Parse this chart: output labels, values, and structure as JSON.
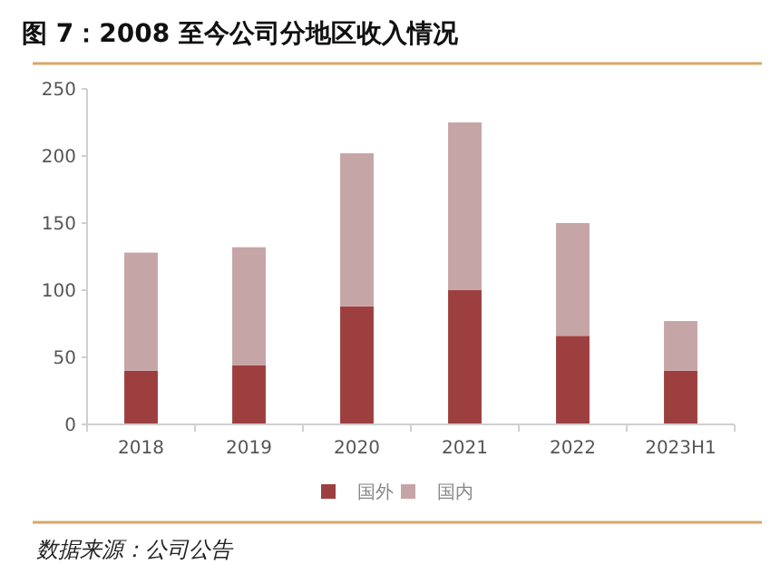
{
  "chart_data": {
    "type": "bar",
    "title": "图 7：2008 至今公司分地区收入情况",
    "annotations": [
      "数据来源：公司公告"
    ],
    "categories": [
      "2018",
      "2019",
      "2020",
      "2021",
      "2022",
      "2023H1"
    ],
    "series": [
      {
        "name": "国外",
        "color": "#9e3f3f",
        "values": [
          40,
          44,
          88,
          100,
          66,
          40
        ]
      },
      {
        "name": "国内",
        "color": "#c6a5a7",
        "values": [
          88,
          88,
          114,
          125,
          84,
          37
        ]
      }
    ],
    "stacked": true,
    "ylim": [
      0,
      250
    ],
    "yticks": [
      0,
      50,
      100,
      150,
      200,
      250
    ],
    "grid": false,
    "legend": "bottom"
  }
}
